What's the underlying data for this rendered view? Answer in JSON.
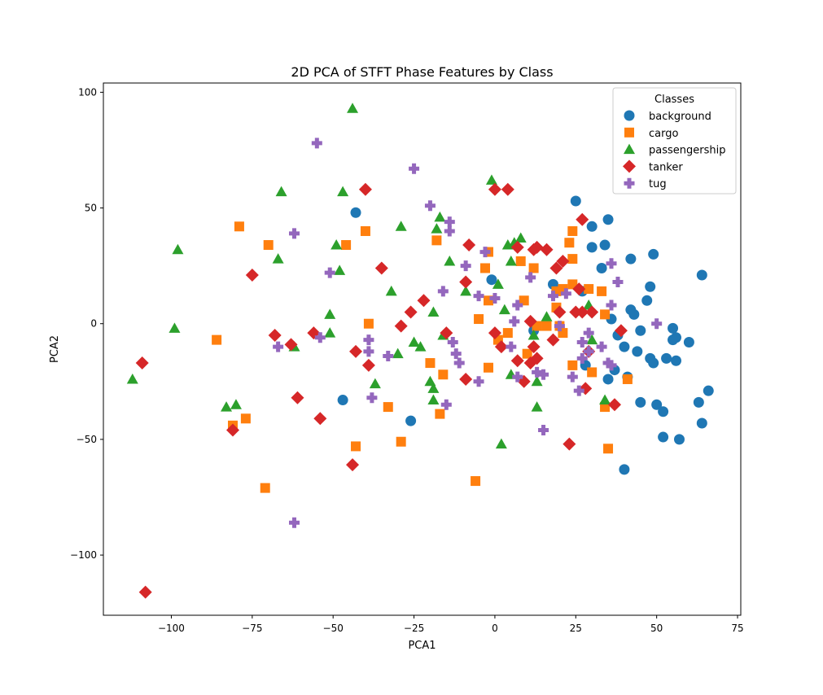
{
  "chart_data": {
    "type": "scatter",
    "title": "2D PCA of STFT Phase Features by Class",
    "xlabel": "PCA1",
    "ylabel": "PCA2",
    "xlim": [
      -121,
      76
    ],
    "ylim": [
      -126,
      104
    ],
    "xticks": [
      -100,
      -75,
      -50,
      -25,
      0,
      25,
      50,
      75
    ],
    "yticks": [
      -100,
      -50,
      0,
      50,
      100
    ],
    "xtick_labels": [
      "−100",
      "−75",
      "−50",
      "−25",
      "0",
      "25",
      "50",
      "75"
    ],
    "ytick_labels": [
      "−100",
      "−50",
      "0",
      "50",
      "100"
    ],
    "grid": false,
    "legend": {
      "title": "Classes",
      "position": "top-right"
    },
    "series": [
      {
        "name": "background",
        "color": "#1f77b4",
        "marker": "circle",
        "points": [
          [
            -43,
            48
          ],
          [
            25,
            53
          ],
          [
            30,
            42
          ],
          [
            35,
            45
          ],
          [
            34,
            34
          ],
          [
            30,
            33
          ],
          [
            33,
            24
          ],
          [
            49,
            30
          ],
          [
            42,
            28
          ],
          [
            64,
            21
          ],
          [
            -1,
            19
          ],
          [
            18,
            17
          ],
          [
            48,
            16
          ],
          [
            27,
            14
          ],
          [
            47,
            10
          ],
          [
            42,
            6
          ],
          [
            43,
            4
          ],
          [
            36,
            2
          ],
          [
            55,
            -2
          ],
          [
            45,
            -3
          ],
          [
            12,
            -3
          ],
          [
            38,
            -5
          ],
          [
            56,
            -6
          ],
          [
            55,
            -7
          ],
          [
            60,
            -8
          ],
          [
            40,
            -10
          ],
          [
            44,
            -12
          ],
          [
            53,
            -15
          ],
          [
            48,
            -15
          ],
          [
            56,
            -16
          ],
          [
            49,
            -17
          ],
          [
            28,
            -18
          ],
          [
            37,
            -20
          ],
          [
            41,
            -23
          ],
          [
            35,
            -24
          ],
          [
            66,
            -29
          ],
          [
            -47,
            -33
          ],
          [
            45,
            -34
          ],
          [
            50,
            -35
          ],
          [
            63,
            -34
          ],
          [
            52,
            -38
          ],
          [
            -26,
            -42
          ],
          [
            64,
            -43
          ],
          [
            52,
            -49
          ],
          [
            57,
            -50
          ],
          [
            40,
            -63
          ]
        ]
      },
      {
        "name": "cargo",
        "color": "#ff7f0e",
        "marker": "square",
        "points": [
          [
            -79,
            42
          ],
          [
            -40,
            40
          ],
          [
            24,
            40
          ],
          [
            -70,
            34
          ],
          [
            -46,
            34
          ],
          [
            -18,
            36
          ],
          [
            23,
            35
          ],
          [
            -2,
            31
          ],
          [
            24,
            28
          ],
          [
            8,
            27
          ],
          [
            -3,
            24
          ],
          [
            12,
            24
          ],
          [
            24,
            17
          ],
          [
            21,
            15
          ],
          [
            29,
            15
          ],
          [
            19,
            14
          ],
          [
            33,
            14
          ],
          [
            -2,
            10
          ],
          [
            9,
            10
          ],
          [
            19,
            7
          ],
          [
            -5,
            2
          ],
          [
            34,
            4
          ],
          [
            -39,
            0
          ],
          [
            13,
            -1
          ],
          [
            16,
            -1
          ],
          [
            20,
            -1
          ],
          [
            -86,
            -7
          ],
          [
            4,
            -4
          ],
          [
            21,
            -4
          ],
          [
            1,
            -7
          ],
          [
            10,
            -13
          ],
          [
            -20,
            -17
          ],
          [
            24,
            -18
          ],
          [
            -2,
            -19
          ],
          [
            30,
            -21
          ],
          [
            -16,
            -22
          ],
          [
            41,
            -24
          ],
          [
            -33,
            -36
          ],
          [
            34,
            -36
          ],
          [
            -17,
            -39
          ],
          [
            -77,
            -41
          ],
          [
            -81,
            -44
          ],
          [
            -29,
            -51
          ],
          [
            -43,
            -53
          ],
          [
            35,
            -54
          ],
          [
            -6,
            -68
          ],
          [
            -71,
            -71
          ]
        ]
      },
      {
        "name": "passengership",
        "color": "#2ca02c",
        "marker": "triangle",
        "points": [
          [
            -44,
            93
          ],
          [
            -1,
            62
          ],
          [
            -66,
            57
          ],
          [
            -47,
            57
          ],
          [
            -17,
            46
          ],
          [
            -29,
            42
          ],
          [
            -18,
            41
          ],
          [
            -98,
            32
          ],
          [
            8,
            37
          ],
          [
            6,
            35
          ],
          [
            4,
            34
          ],
          [
            -49,
            34
          ],
          [
            -67,
            28
          ],
          [
            -14,
            27
          ],
          [
            5,
            27
          ],
          [
            -48,
            23
          ],
          [
            -9,
            14
          ],
          [
            1,
            17
          ],
          [
            -32,
            14
          ],
          [
            16,
            3
          ],
          [
            3,
            6
          ],
          [
            -19,
            5
          ],
          [
            -51,
            4
          ],
          [
            29,
            8
          ],
          [
            -51,
            -4
          ],
          [
            -16,
            -5
          ],
          [
            12,
            -5
          ],
          [
            -99,
            -2
          ],
          [
            30,
            -7
          ],
          [
            -25,
            -8
          ],
          [
            -62,
            -10
          ],
          [
            -23,
            -10
          ],
          [
            -30,
            -13
          ],
          [
            -37,
            -26
          ],
          [
            -20,
            -25
          ],
          [
            -19,
            -28
          ],
          [
            -112,
            -24
          ],
          [
            -19,
            -33
          ],
          [
            34,
            -33
          ],
          [
            -80,
            -35
          ],
          [
            -83,
            -36
          ],
          [
            13,
            -36
          ],
          [
            5,
            -22
          ],
          [
            13,
            -25
          ],
          [
            2,
            -52
          ]
        ]
      },
      {
        "name": "tanker",
        "color": "#d62728",
        "marker": "diamond",
        "points": [
          [
            -40,
            58
          ],
          [
            0,
            58
          ],
          [
            4,
            58
          ],
          [
            27,
            45
          ],
          [
            -8,
            34
          ],
          [
            7,
            33
          ],
          [
            12,
            32
          ],
          [
            13,
            33
          ],
          [
            16,
            32
          ],
          [
            -35,
            24
          ],
          [
            19,
            24
          ],
          [
            21,
            27
          ],
          [
            -75,
            21
          ],
          [
            -9,
            18
          ],
          [
            26,
            15
          ],
          [
            -22,
            10
          ],
          [
            -26,
            5
          ],
          [
            25,
            5
          ],
          [
            27,
            5
          ],
          [
            30,
            5
          ],
          [
            11,
            1
          ],
          [
            -29,
            -1
          ],
          [
            20,
            5
          ],
          [
            39,
            -3
          ],
          [
            -68,
            -5
          ],
          [
            -56,
            -4
          ],
          [
            -15,
            -4
          ],
          [
            0,
            -4
          ],
          [
            2,
            -10
          ],
          [
            -63,
            -9
          ],
          [
            18,
            -7
          ],
          [
            12,
            -10
          ],
          [
            29,
            -12
          ],
          [
            -43,
            -12
          ],
          [
            13,
            -15
          ],
          [
            7,
            -16
          ],
          [
            -109,
            -17
          ],
          [
            -39,
            -18
          ],
          [
            11,
            -17
          ],
          [
            -9,
            -24
          ],
          [
            9,
            -25
          ],
          [
            -61,
            -32
          ],
          [
            28,
            -28
          ],
          [
            37,
            -35
          ],
          [
            -54,
            -41
          ],
          [
            -81,
            -46
          ],
          [
            23,
            -52
          ],
          [
            -44,
            -61
          ],
          [
            -108,
            -116
          ]
        ]
      },
      {
        "name": "tug",
        "color": "#9467bd",
        "marker": "plus",
        "points": [
          [
            -55,
            78
          ],
          [
            -25,
            67
          ],
          [
            -20,
            51
          ],
          [
            -14,
            44
          ],
          [
            -14,
            40
          ],
          [
            -62,
            39
          ],
          [
            -3,
            31
          ],
          [
            -51,
            22
          ],
          [
            -9,
            25
          ],
          [
            36,
            26
          ],
          [
            11,
            20
          ],
          [
            38,
            18
          ],
          [
            -16,
            14
          ],
          [
            -5,
            12
          ],
          [
            0,
            11
          ],
          [
            18,
            12
          ],
          [
            22,
            13
          ],
          [
            7,
            8
          ],
          [
            36,
            8
          ],
          [
            50,
            0
          ],
          [
            6,
            1
          ],
          [
            20,
            -1
          ],
          [
            -54,
            -6
          ],
          [
            -39,
            -7
          ],
          [
            29,
            -4
          ],
          [
            -13,
            -8
          ],
          [
            27,
            -8
          ],
          [
            -67,
            -10
          ],
          [
            5,
            -10
          ],
          [
            33,
            -10
          ],
          [
            -39,
            -12
          ],
          [
            -33,
            -14
          ],
          [
            -12,
            -13
          ],
          [
            29,
            -12
          ],
          [
            -11,
            -17
          ],
          [
            35,
            -17
          ],
          [
            36,
            -18
          ],
          [
            27,
            -15
          ],
          [
            13,
            -21
          ],
          [
            7,
            -23
          ],
          [
            15,
            -22
          ],
          [
            24,
            -23
          ],
          [
            -5,
            -25
          ],
          [
            -38,
            -32
          ],
          [
            -15,
            -35
          ],
          [
            26,
            -29
          ],
          [
            15,
            -46
          ],
          [
            -62,
            -86
          ]
        ]
      }
    ]
  }
}
